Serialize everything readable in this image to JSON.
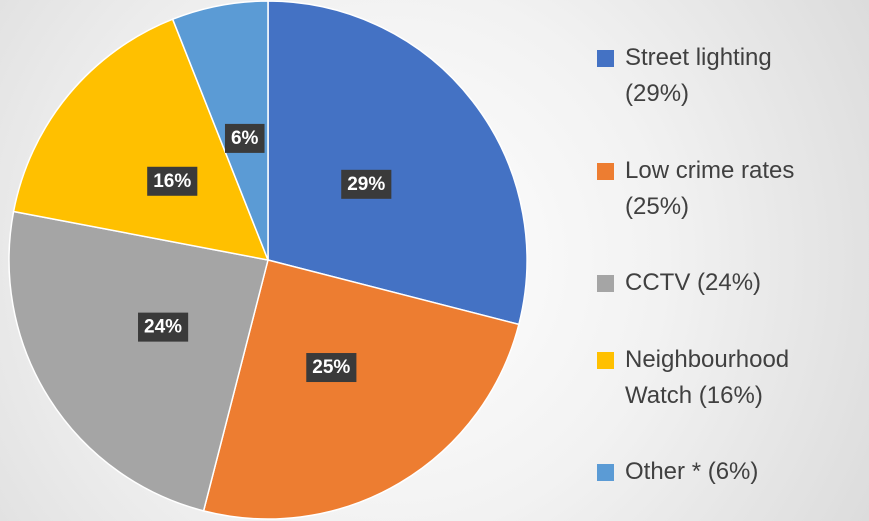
{
  "chart_data": {
    "type": "pie",
    "categories": [
      "Street lighting (29%)",
      "Low crime rates (25%)",
      "CCTV (24%)",
      "Neighbourhood Watch (16%)",
      "Other * (6%)"
    ],
    "values": [
      29,
      25,
      24,
      16,
      6
    ],
    "value_labels": [
      "29%",
      "25%",
      "24%",
      "16%",
      "6%"
    ],
    "colors": [
      "#4472c4",
      "#ed7d31",
      "#a5a5a5",
      "#ffc000",
      "#5b9bd5"
    ],
    "legend": "right"
  }
}
